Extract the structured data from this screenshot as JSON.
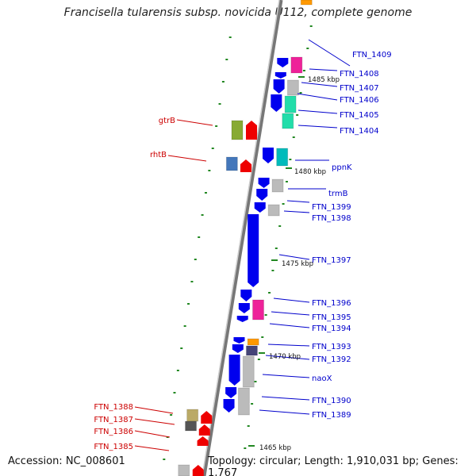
{
  "title": "Francisella tularensis subsp. novicida U112, complete genome",
  "footer": {
    "accession": "Accession: NC_008601",
    "summary": "Topology: circular; Length: 1,910,031 bp; Genes: 1,767"
  },
  "colors": {
    "forward_label": "#0000cc",
    "reverse_label": "#cc0000",
    "blue_gene": "#0000ee",
    "red_gene": "#ee0000",
    "gray_gene": "#bbbbbb",
    "magenta_gene": "#ee2299",
    "cyan_gene": "#00bbbb",
    "teal_gene": "#22ddaa",
    "olive_gene": "#88aa33",
    "steel_gene": "#4477bb",
    "tan_gene": "#bbaa66",
    "dark_gray_gene": "#555555",
    "orange_gene": "#ff9900",
    "slate_gene": "#444477",
    "tick": "#228822"
  },
  "scale_labels": [
    "1485 kbp",
    "1480 kbp",
    "1475 kbp",
    "1470 kbp",
    "1465 kbp"
  ],
  "forward_labels": [
    "FTN_1409",
    "FTN_1408",
    "FTN_1407",
    "FTN_1406",
    "FTN_1405",
    "FTN_1404",
    "ppnK",
    "trmB",
    "FTN_1399",
    "FTN_1398",
    "FTN_1397",
    "FTN_1396",
    "FTN_1395",
    "FTN_1394",
    "FTN_1393",
    "FTN_1392",
    "naoX",
    "FTN_1390",
    "FTN_1389"
  ],
  "reverse_labels": [
    "gtrB",
    "rhtB",
    "FTN_1388",
    "FTN_1387",
    "FTN_1386",
    "FTN_1385"
  ]
}
